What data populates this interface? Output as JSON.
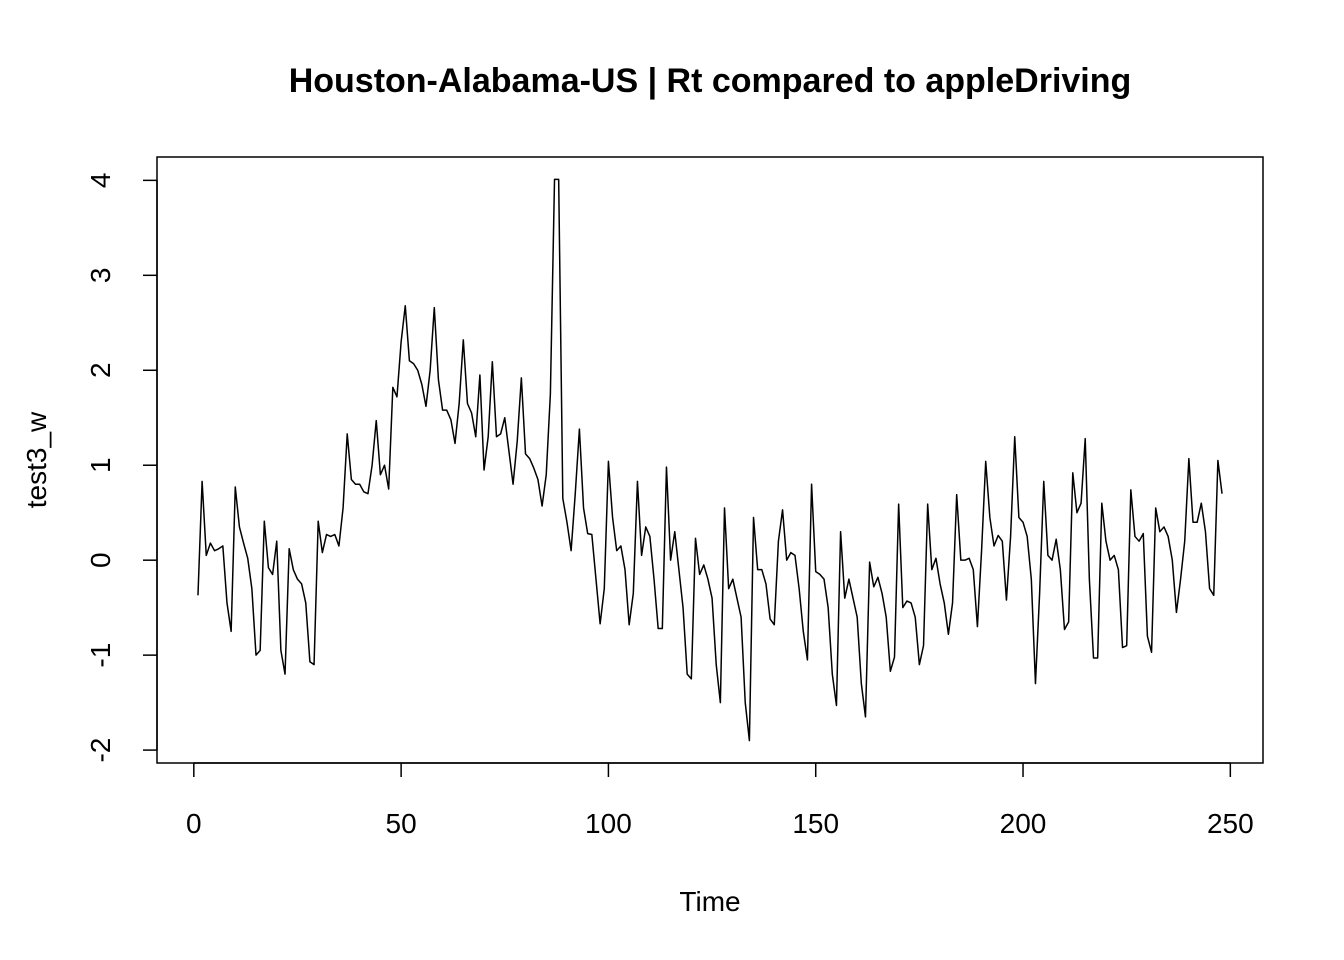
{
  "chart_data": {
    "type": "line",
    "title": "Houston-Alabama-US | Rt compared to appleDriving",
    "x_label": "Time",
    "y_label": "test3_w",
    "xlim": [
      -8.88,
      257.88
    ],
    "ylim": [
      -2.136,
      4.246
    ],
    "xticks": [
      0,
      50,
      100,
      150,
      200,
      250
    ],
    "yticks": [
      -2,
      -1,
      0,
      1,
      2,
      3,
      4
    ],
    "series": [
      {
        "color": "#000000",
        "x": [
          1,
          2,
          3,
          4,
          5,
          6,
          7,
          8,
          9,
          10,
          11,
          12,
          13,
          14,
          15,
          16,
          17,
          18,
          19,
          20,
          21,
          22,
          23,
          24,
          25,
          26,
          27,
          28,
          29,
          30,
          31,
          32,
          33,
          34,
          35,
          36,
          37,
          38,
          39,
          40,
          41,
          42,
          43,
          44,
          45,
          46,
          47,
          48,
          49,
          50,
          51,
          52,
          53,
          54,
          55,
          56,
          57,
          58,
          59,
          60,
          61,
          62,
          63,
          64,
          65,
          66,
          67,
          68,
          69,
          70,
          71,
          72,
          73,
          74,
          75,
          76,
          77,
          78,
          79,
          80,
          81,
          82,
          83,
          84,
          85,
          86,
          87,
          88,
          89,
          90,
          91,
          92,
          93,
          94,
          95,
          96,
          97,
          98,
          99,
          100,
          101,
          102,
          103,
          104,
          105,
          106,
          107,
          108,
          109,
          110,
          111,
          112,
          113,
          114,
          115,
          116,
          117,
          118,
          119,
          120,
          121,
          122,
          123,
          124,
          125,
          126,
          127,
          128,
          129,
          130,
          131,
          132,
          133,
          134,
          135,
          136,
          137,
          138,
          139,
          140,
          141,
          142,
          143,
          144,
          145,
          146,
          147,
          148,
          149,
          150,
          151,
          152,
          153,
          154,
          155,
          156,
          157,
          158,
          159,
          160,
          161,
          162,
          163,
          164,
          165,
          166,
          167,
          168,
          169,
          170,
          171,
          172,
          173,
          174,
          175,
          176,
          177,
          178,
          179,
          180,
          181,
          182,
          183,
          184,
          185,
          186,
          187,
          188,
          189,
          190,
          191,
          192,
          193,
          194,
          195,
          196,
          197,
          198,
          199,
          200,
          201,
          202,
          203,
          204,
          205,
          206,
          207,
          208,
          209,
          210,
          211,
          212,
          213,
          214,
          215,
          216,
          217,
          218,
          219,
          220,
          221,
          222,
          223,
          224,
          225,
          226,
          227,
          228,
          229,
          230,
          231,
          232,
          233,
          234,
          235,
          236,
          237,
          238,
          239,
          240,
          241,
          242,
          243,
          244,
          245,
          246,
          247,
          248
        ],
        "values": [
          -0.37,
          0.83,
          0.05,
          0.18,
          0.1,
          0.12,
          0.15,
          -0.45,
          -0.75,
          0.77,
          0.35,
          0.18,
          0.02,
          -0.3,
          -1.0,
          -0.95,
          0.41,
          -0.08,
          -0.15,
          0.2,
          -0.95,
          -1.2,
          0.12,
          -0.1,
          -0.2,
          -0.25,
          -0.45,
          -1.07,
          -1.1,
          0.41,
          0.08,
          0.27,
          0.25,
          0.27,
          0.15,
          0.55,
          1.33,
          0.85,
          0.8,
          0.8,
          0.72,
          0.7,
          1.0,
          1.47,
          0.9,
          1.0,
          0.75,
          1.82,
          1.72,
          2.3,
          2.68,
          2.1,
          2.07,
          2.0,
          1.85,
          1.62,
          2.0,
          2.66,
          1.9,
          1.58,
          1.58,
          1.48,
          1.23,
          1.65,
          2.32,
          1.65,
          1.55,
          1.3,
          1.95,
          0.95,
          1.3,
          2.09,
          1.3,
          1.33,
          1.5,
          1.15,
          0.8,
          1.25,
          1.92,
          1.12,
          1.07,
          0.97,
          0.85,
          0.57,
          0.9,
          1.75,
          4.01,
          4.01,
          0.65,
          0.4,
          0.1,
          0.7,
          1.38,
          0.55,
          0.28,
          0.27,
          -0.2,
          -0.67,
          -0.3,
          1.04,
          0.45,
          0.1,
          0.15,
          -0.1,
          -0.68,
          -0.35,
          0.83,
          0.05,
          0.35,
          0.25,
          -0.2,
          -0.72,
          -0.72,
          0.98,
          0.0,
          0.3,
          -0.1,
          -0.5,
          -1.2,
          -1.25,
          0.23,
          -0.15,
          -0.05,
          -0.2,
          -0.4,
          -1.1,
          -1.5,
          0.55,
          -0.3,
          -0.2,
          -0.4,
          -0.6,
          -1.5,
          -1.9,
          0.45,
          -0.1,
          -0.1,
          -0.25,
          -0.62,
          -0.68,
          0.2,
          0.53,
          0.0,
          0.08,
          0.05,
          -0.3,
          -0.75,
          -1.05,
          0.8,
          -0.12,
          -0.15,
          -0.2,
          -0.5,
          -1.2,
          -1.53,
          0.3,
          -0.4,
          -0.2,
          -0.4,
          -0.6,
          -1.3,
          -1.65,
          -0.02,
          -0.28,
          -0.18,
          -0.35,
          -0.6,
          -1.17,
          -1.02,
          0.59,
          -0.5,
          -0.43,
          -0.45,
          -0.6,
          -1.1,
          -0.9,
          0.59,
          -0.1,
          0.02,
          -0.25,
          -0.45,
          -0.78,
          -0.45,
          0.69,
          0.0,
          0.0,
          0.02,
          -0.1,
          -0.7,
          0.1,
          1.04,
          0.45,
          0.15,
          0.26,
          0.2,
          -0.42,
          0.25,
          1.3,
          0.45,
          0.4,
          0.25,
          -0.2,
          -1.3,
          -0.35,
          0.83,
          0.05,
          0.0,
          0.22,
          -0.1,
          -0.73,
          -0.65,
          0.92,
          0.5,
          0.6,
          1.28,
          -0.2,
          -1.03,
          -1.03,
          0.6,
          0.2,
          0.0,
          0.05,
          -0.1,
          -0.92,
          -0.9,
          0.74,
          0.25,
          0.2,
          0.28,
          -0.8,
          -0.97,
          0.55,
          0.3,
          0.35,
          0.25,
          0.0,
          -0.55,
          -0.2,
          0.2,
          1.07,
          0.4,
          0.4,
          0.6,
          0.3,
          -0.3,
          -0.37,
          1.05,
          0.7
        ]
      }
    ]
  }
}
